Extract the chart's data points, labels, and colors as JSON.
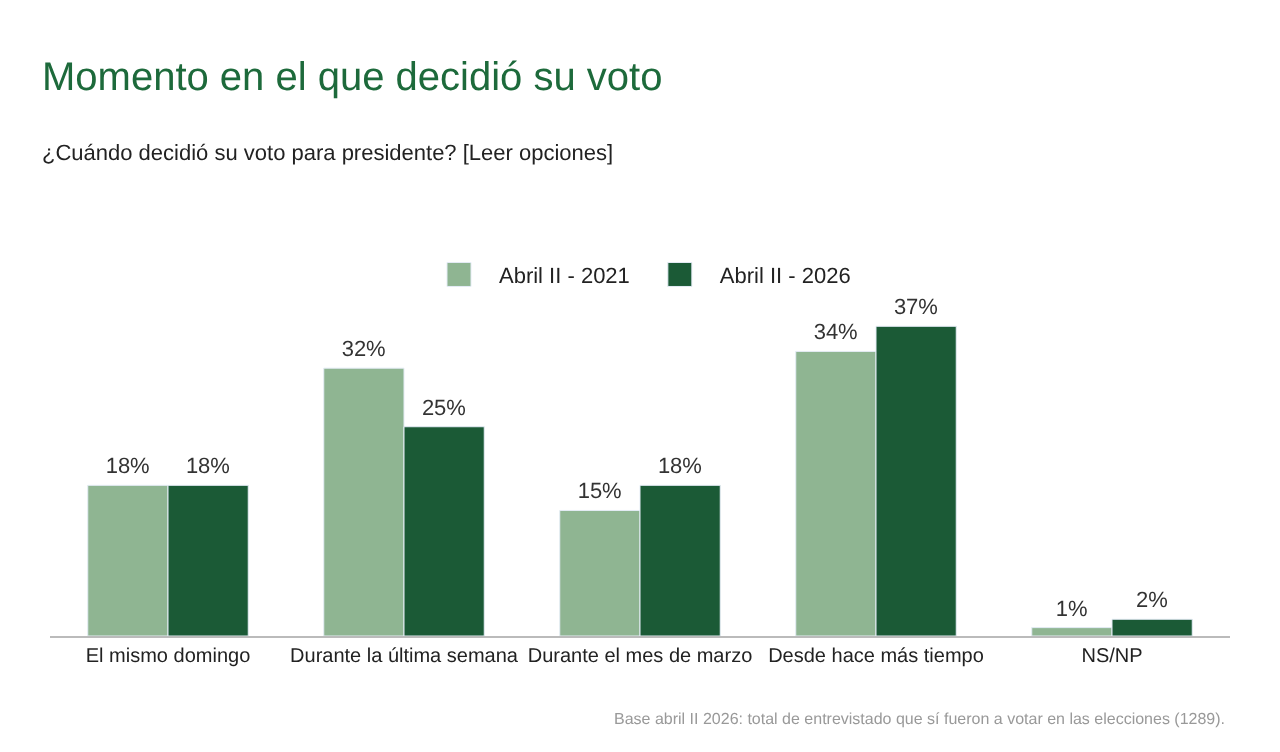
{
  "chart_data": {
    "type": "bar",
    "title": "Momento en el que decidió su voto",
    "subtitle": "¿Cuándo decidió su voto para presidente? [Leer opciones]",
    "categories": [
      "El mismo domingo",
      "Durante la última semana",
      "Durante el mes de marzo",
      "Desde hace más tiempo",
      "NS/NP"
    ],
    "series": [
      {
        "name": "Abril II - 2021",
        "color": "#8fb592",
        "values": [
          18,
          32,
          15,
          34,
          1
        ],
        "value_labels": [
          "18%",
          "32%",
          "15%",
          "34%",
          "1%"
        ]
      },
      {
        "name": "Abril II - 2026",
        "color": "#1b5a36",
        "values": [
          18,
          25,
          18,
          37,
          2
        ],
        "value_labels": [
          "18%",
          "25%",
          "18%",
          "37%",
          "2%"
        ]
      }
    ],
    "legend": "top",
    "annotations": [
      "Base abril II 2026: total de entrevistado que sí fueron a votar en las elecciones (1289)."
    ]
  }
}
